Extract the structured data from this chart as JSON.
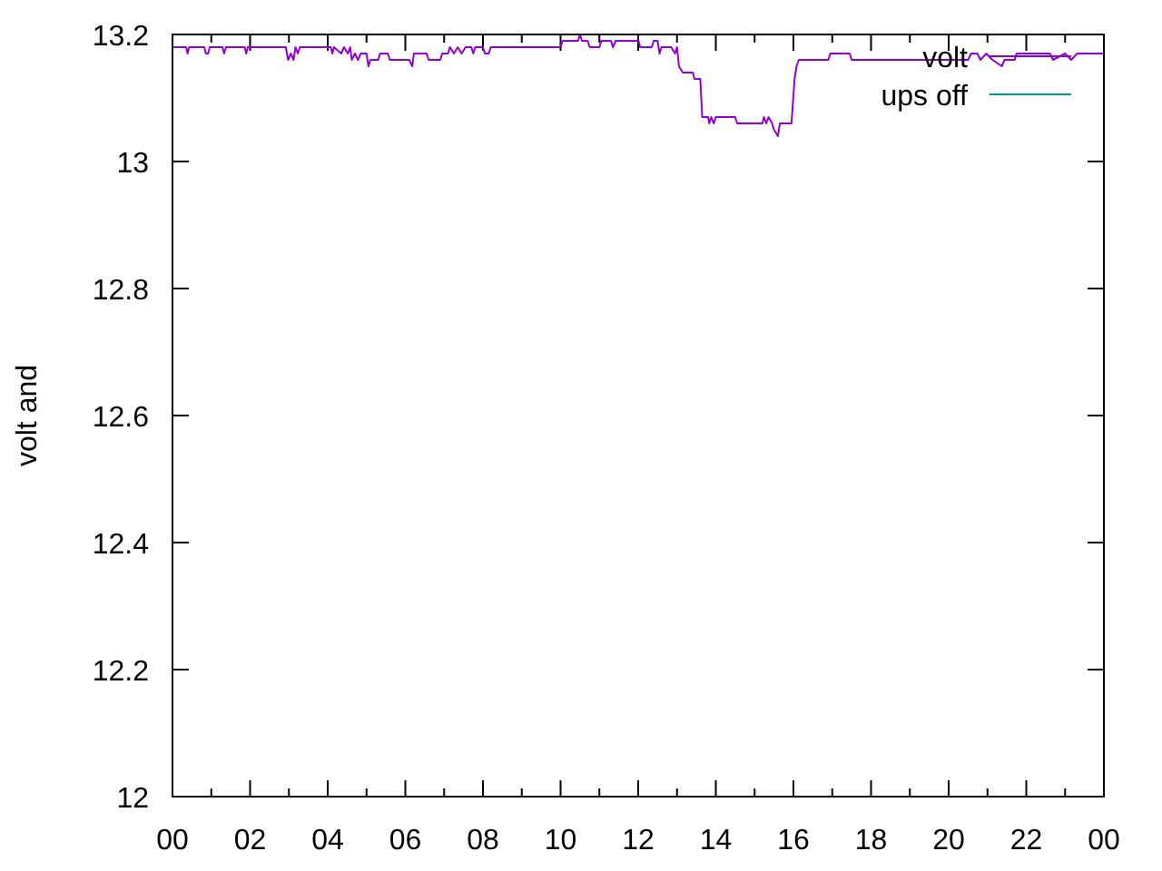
{
  "chart_data": {
    "type": "line",
    "ylabel": "volt and",
    "xlim": [
      0,
      24
    ],
    "xticks": [
      {
        "value": 0,
        "label": "00"
      },
      {
        "value": 1,
        "label": null
      },
      {
        "value": 2,
        "label": "02"
      },
      {
        "value": 3,
        "label": null
      },
      {
        "value": 4,
        "label": "04"
      },
      {
        "value": 5,
        "label": null
      },
      {
        "value": 6,
        "label": "06"
      },
      {
        "value": 7,
        "label": null
      },
      {
        "value": 8,
        "label": "08"
      },
      {
        "value": 9,
        "label": null
      },
      {
        "value": 10,
        "label": "10"
      },
      {
        "value": 11,
        "label": null
      },
      {
        "value": 12,
        "label": "12"
      },
      {
        "value": 13,
        "label": null
      },
      {
        "value": 14,
        "label": "14"
      },
      {
        "value": 15,
        "label": null
      },
      {
        "value": 16,
        "label": "16"
      },
      {
        "value": 17,
        "label": null
      },
      {
        "value": 18,
        "label": "18"
      },
      {
        "value": 19,
        "label": null
      },
      {
        "value": 20,
        "label": "20"
      },
      {
        "value": 21,
        "label": null
      },
      {
        "value": 22,
        "label": "22"
      },
      {
        "value": 23,
        "label": null
      },
      {
        "value": 24,
        "label": "00"
      }
    ],
    "ylim": [
      12,
      13.2
    ],
    "yticks": [
      12,
      12.2,
      12.4,
      12.6,
      12.8,
      13,
      13.2
    ],
    "legend": "top right",
    "series": [
      {
        "name": "volt",
        "color": "#9400d3",
        "x": [
          0,
          0.35,
          0.39,
          0.43,
          0.82,
          0.86,
          0.92,
          0.96,
          1.29,
          1.33,
          1.38,
          1.86,
          1.9,
          1.94,
          2.92,
          2.98,
          3.05,
          3.12,
          3.17,
          3.23,
          3.28,
          4.08,
          4.12,
          4.16,
          4.35,
          4.42,
          4.52,
          4.58,
          4.62,
          4.7,
          4.78,
          4.85,
          5.0,
          5.05,
          5.1,
          5.3,
          5.35,
          5.55,
          5.6,
          6.1,
          6.18,
          6.22,
          6.55,
          6.6,
          6.9,
          6.95,
          7.1,
          7.15,
          7.25,
          7.35,
          7.45,
          7.55,
          7.7,
          7.75,
          7.8,
          8.0,
          8.05,
          8.15,
          8.2,
          10.0,
          10.05,
          10.45,
          10.5,
          10.55,
          10.7,
          10.75,
          11.0,
          11.05,
          11.3,
          11.35,
          11.42,
          12.01,
          12.05,
          12.35,
          12.4,
          12.5,
          12.55,
          12.6,
          12.85,
          12.95,
          13.0,
          13.05,
          13.15,
          13.41,
          13.45,
          13.6,
          13.65,
          13.8,
          13.83,
          13.88,
          13.95,
          14.0,
          14.5,
          14.55,
          15.2,
          15.24,
          15.3,
          15.36,
          15.45,
          15.5,
          15.6,
          15.65,
          15.95,
          16.03,
          16.08,
          16.14,
          16.9,
          16.95,
          17.45,
          17.5,
          20.5,
          20.58,
          20.74,
          20.82,
          20.97,
          21.13,
          21.37,
          21.44,
          21.7,
          21.75,
          22.61,
          22.69,
          23.0,
          23.16,
          23.31,
          24
        ],
        "values": [
          13.18,
          13.18,
          13.17,
          13.18,
          13.18,
          13.17,
          13.17,
          13.18,
          13.18,
          13.17,
          13.18,
          13.18,
          13.17,
          13.18,
          13.18,
          13.16,
          13.17,
          13.16,
          13.18,
          13.17,
          13.18,
          13.18,
          13.17,
          13.18,
          13.17,
          13.18,
          13.17,
          13.18,
          13.16,
          13.17,
          13.16,
          13.17,
          13.17,
          13.15,
          13.16,
          13.16,
          13.17,
          13.17,
          13.16,
          13.16,
          13.15,
          13.17,
          13.17,
          13.16,
          13.16,
          13.17,
          13.17,
          13.18,
          13.17,
          13.18,
          13.17,
          13.18,
          13.18,
          13.17,
          13.18,
          13.18,
          13.17,
          13.17,
          13.18,
          13.18,
          13.19,
          13.19,
          13.2,
          13.19,
          13.19,
          13.18,
          13.18,
          13.19,
          13.19,
          13.18,
          13.19,
          13.19,
          13.18,
          13.18,
          13.19,
          13.19,
          13.17,
          13.18,
          13.18,
          13.17,
          13.18,
          13.15,
          13.14,
          13.14,
          13.13,
          13.13,
          13.07,
          13.07,
          13.06,
          13.07,
          13.06,
          13.07,
          13.07,
          13.06,
          13.06,
          13.07,
          13.06,
          13.07,
          13.06,
          13.05,
          13.04,
          13.06,
          13.06,
          13.13,
          13.15,
          13.16,
          13.16,
          13.17,
          13.17,
          13.16,
          13.16,
          13.17,
          13.17,
          13.16,
          13.17,
          13.16,
          13.15,
          13.16,
          13.16,
          13.17,
          13.17,
          13.16,
          13.17,
          13.16,
          13.17,
          13.17
        ]
      },
      {
        "name": "ups off",
        "color": "#009e73"
      }
    ]
  }
}
